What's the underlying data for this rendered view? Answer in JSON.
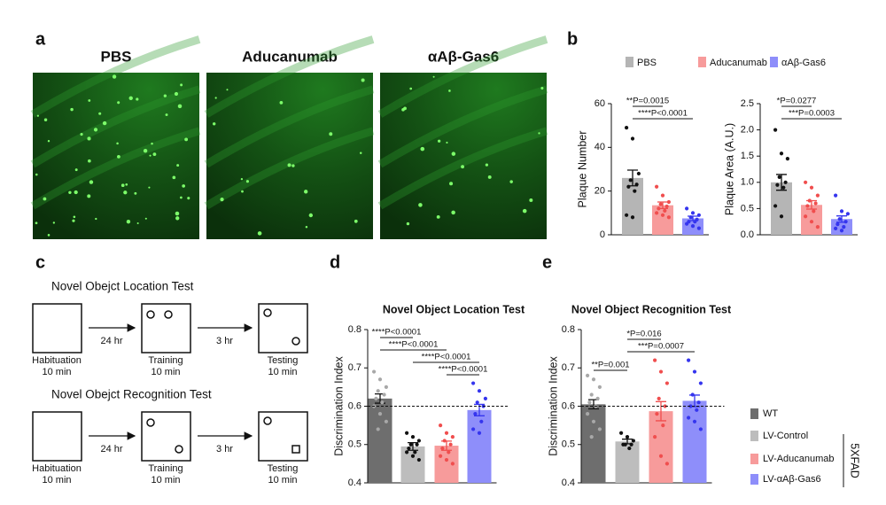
{
  "panel_labels": [
    "a",
    "b",
    "c",
    "d",
    "e"
  ],
  "image_titles": [
    "PBS",
    "Aducanumab",
    "αAβ-Gas6"
  ],
  "diagram": {
    "rows": [
      {
        "title": "Novel Obejct Location Test",
        "steps": [
          {
            "label": "Habituation",
            "duration": "10 min"
          },
          {
            "label": "Training",
            "duration": "10 min"
          },
          {
            "label": "Testing",
            "duration": "10 min"
          }
        ],
        "intervals": [
          "24 hr",
          "3 hr"
        ]
      },
      {
        "title": "Novel Obejct Recognition Test",
        "steps": [
          {
            "label": "Habituation",
            "duration": "10 min"
          },
          {
            "label": "Training",
            "duration": "10 min"
          },
          {
            "label": "Testing",
            "duration": "10 min"
          }
        ],
        "intervals": [
          "24 hr",
          "3 hr"
        ]
      }
    ]
  },
  "chart_data": [
    {
      "type": "bar",
      "y_label": "Plaque Number",
      "ylim": [
        0,
        60
      ],
      "yticks": [
        0,
        20,
        40,
        60
      ],
      "annotations": [
        "**P=0.0015",
        "****P<0.0001"
      ],
      "series": [
        {
          "name": "PBS",
          "color": "#b5b5b5",
          "point_color": "#111111",
          "values": [
            26
          ],
          "errors": [
            3.6
          ],
          "points": [
            49,
            44,
            28,
            25,
            23,
            22,
            20,
            9,
            8
          ]
        },
        {
          "name": "Aducanumab",
          "color": "#f79b9b",
          "point_color": "#f04e4e",
          "values": [
            13.5
          ],
          "errors": [
            1.5
          ],
          "points": [
            22,
            18,
            15,
            14,
            13,
            12,
            11,
            10,
            9,
            8
          ]
        },
        {
          "name": "αAβ-Gas6",
          "color": "#8e8efa",
          "point_color": "#3535ee",
          "values": [
            7.5
          ],
          "errors": [
            1
          ],
          "points": [
            12,
            10,
            9,
            8,
            7,
            6,
            6,
            5,
            4,
            3
          ]
        }
      ]
    },
    {
      "type": "bar",
      "y_label": "Plaque Area (A.U.)",
      "ylim": [
        0,
        2.5
      ],
      "yticks": [
        {
          "value": 0,
          "label": "0.0"
        },
        0.5,
        {
          "value": 1,
          "label": "1.0"
        },
        1.5,
        {
          "value": 2,
          "label": "2.0"
        },
        2.5
      ],
      "annotations": [
        "*P=0.0277",
        "***P=0.0003"
      ],
      "series": [
        {
          "color": "#b5b5b5",
          "point_color": "#111111",
          "values": [
            1.0
          ],
          "errors": [
            0.15
          ],
          "points": [
            2.0,
            1.55,
            1.45,
            1.1,
            1.0,
            0.95,
            0.9,
            0.55,
            0.35
          ]
        },
        {
          "color": "#f79b9b",
          "point_color": "#f04e4e",
          "values": [
            0.57
          ],
          "errors": [
            0.08
          ],
          "points": [
            1.0,
            0.9,
            0.75,
            0.65,
            0.6,
            0.55,
            0.45,
            0.35,
            0.25,
            0.15
          ]
        },
        {
          "color": "#8e8efa",
          "point_color": "#3535ee",
          "values": [
            0.3
          ],
          "errors": [
            0.06
          ],
          "points": [
            0.75,
            0.45,
            0.4,
            0.3,
            0.25,
            0.2,
            0.15,
            0.12,
            0.08
          ]
        }
      ]
    },
    {
      "type": "bar",
      "title": "Novel Object Location Test",
      "y_label": "Discrimination Index",
      "ylim": [
        0.4,
        0.8
      ],
      "yticks": [
        0.4,
        0.5,
        0.6,
        0.7,
        0.8
      ],
      "reference_line": 0.6,
      "annotations": [
        "****P<0.0001",
        "****P<0.0001",
        "****P<0.0001",
        "****P<0.0001"
      ],
      "series": [
        {
          "color": "#6e6e6e",
          "point_color": "#a8a8a8",
          "values": [
            0.62
          ],
          "errors": [
            0.012
          ],
          "points": [
            0.69,
            0.67,
            0.65,
            0.64,
            0.63,
            0.62,
            0.61,
            0.6,
            0.58,
            0.56,
            0.54
          ]
        },
        {
          "color": "#bdbdbd",
          "point_color": "#111111",
          "values": [
            0.495
          ],
          "errors": [
            0.01
          ],
          "points": [
            0.53,
            0.52,
            0.51,
            0.5,
            0.5,
            0.49,
            0.48,
            0.48,
            0.47,
            0.46
          ]
        },
        {
          "color": "#f79b9b",
          "point_color": "#f04e4e",
          "values": [
            0.497
          ],
          "errors": [
            0.012
          ],
          "points": [
            0.55,
            0.53,
            0.52,
            0.51,
            0.5,
            0.49,
            0.48,
            0.47,
            0.46,
            0.45
          ]
        },
        {
          "color": "#8e8efa",
          "point_color": "#3535ee",
          "values": [
            0.59
          ],
          "errors": [
            0.015
          ],
          "points": [
            0.66,
            0.64,
            0.62,
            0.61,
            0.6,
            0.58,
            0.56,
            0.54,
            0.53
          ]
        }
      ]
    },
    {
      "type": "bar",
      "title": "Novel Object Recognition Test",
      "y_label": "Discrimination Index",
      "ylim": [
        0.4,
        0.8
      ],
      "yticks": [
        0.4,
        0.5,
        0.6,
        0.7,
        0.8
      ],
      "reference_line": 0.6,
      "group_label": "5XFAD",
      "annotations": [
        "**P=0.001",
        "*P=0.016",
        "***P=0.0007"
      ],
      "series": [
        {
          "name": "WT",
          "color": "#6e6e6e",
          "point_color": "#a8a8a8",
          "values": [
            0.605
          ],
          "errors": [
            0.012
          ],
          "points": [
            0.68,
            0.67,
            0.65,
            0.63,
            0.62,
            0.61,
            0.6,
            0.58,
            0.56,
            0.54,
            0.52
          ]
        },
        {
          "name": "LV-Control",
          "color": "#bdbdbd",
          "point_color": "#111111",
          "values": [
            0.508
          ],
          "errors": [
            0.006
          ],
          "points": [
            0.53,
            0.52,
            0.51,
            0.5,
            0.5,
            0.5,
            0.49
          ]
        },
        {
          "name": "LV-Aducanumab",
          "color": "#f79b9b",
          "point_color": "#f04e4e",
          "values": [
            0.587
          ],
          "errors": [
            0.025
          ],
          "points": [
            0.72,
            0.69,
            0.66,
            0.62,
            0.6,
            0.58,
            0.55,
            0.52,
            0.47,
            0.45
          ]
        },
        {
          "name": "LV-αAβ-Gas6",
          "color": "#8e8efa",
          "point_color": "#3535ee",
          "values": [
            0.614
          ],
          "errors": [
            0.015
          ],
          "points": [
            0.72,
            0.69,
            0.66,
            0.63,
            0.61,
            0.6,
            0.59,
            0.57,
            0.56,
            0.54
          ]
        }
      ]
    }
  ]
}
